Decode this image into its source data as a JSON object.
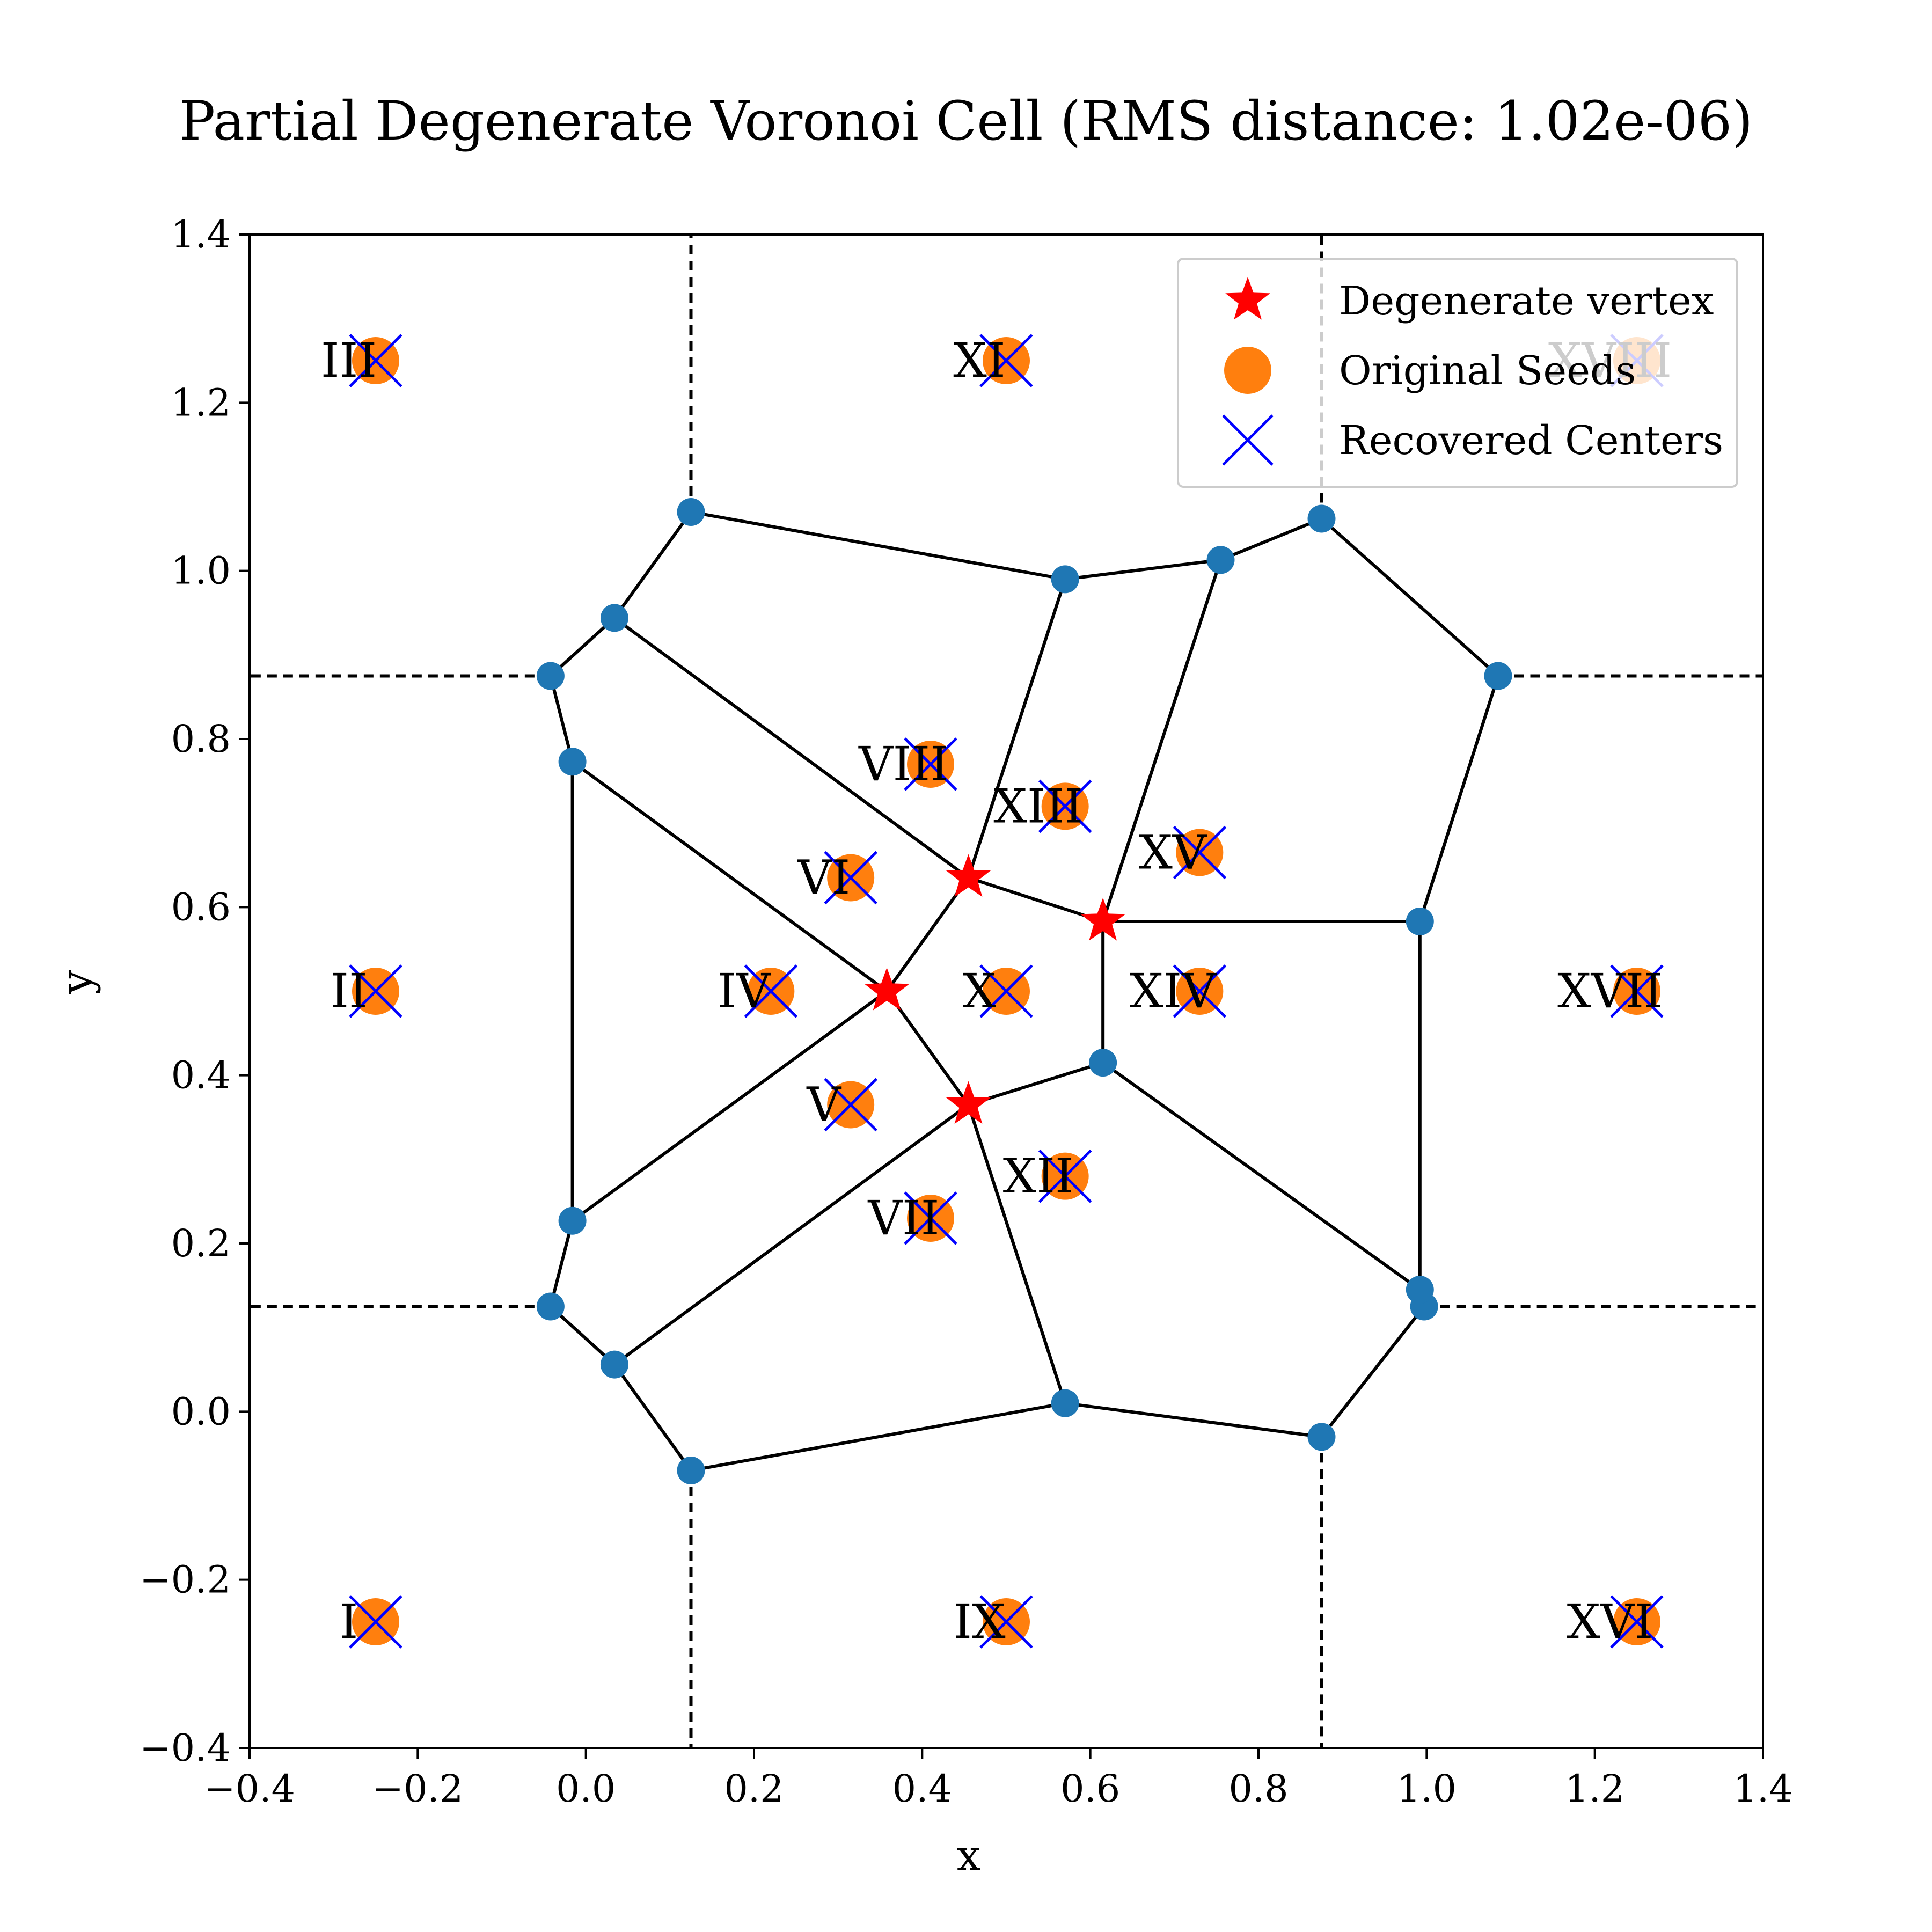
{
  "chart_data": {
    "type": "scatter",
    "title": "Partial Degenerate Voronoi Cell  (RMS distance: 1.02e-06)",
    "xlabel": "x",
    "ylabel": "y",
    "xlim": [
      -0.4,
      1.4
    ],
    "ylim": [
      -0.4,
      1.4
    ],
    "xticks": [
      -0.4,
      -0.2,
      0.0,
      0.2,
      0.4,
      0.6,
      0.8,
      1.0,
      1.2,
      1.4
    ],
    "yticks": [
      -0.4,
      -0.2,
      0.0,
      0.2,
      0.4,
      0.6,
      0.8,
      1.0,
      1.2,
      1.4
    ],
    "xtick_labels": [
      "−0.4",
      "−0.2",
      "0.0",
      "0.2",
      "0.4",
      "0.6",
      "0.8",
      "1.0",
      "1.2",
      "1.4"
    ],
    "ytick_labels": [
      "−0.4",
      "−0.2",
      "0.0",
      "0.2",
      "0.4",
      "0.6",
      "0.8",
      "1.0",
      "1.2",
      "1.4"
    ],
    "legend": {
      "placement": "upper right",
      "entries": [
        "Degenerate vertex",
        "Original Seeds",
        "Recovered Centers"
      ]
    },
    "colors": {
      "vertex": "#1f77b4",
      "seed": "#ff7f0e",
      "center": "#0000ff",
      "degenerate": "#ff0000",
      "edge": "#000000"
    },
    "seeds": [
      {
        "label": "I",
        "x": -0.25,
        "y": -0.25
      },
      {
        "label": "II",
        "x": -0.25,
        "y": 0.5
      },
      {
        "label": "III",
        "x": -0.25,
        "y": 1.25
      },
      {
        "label": "IV",
        "x": 0.22,
        "y": 0.5
      },
      {
        "label": "V",
        "x": 0.315,
        "y": 0.365
      },
      {
        "label": "VI",
        "x": 0.315,
        "y": 0.635
      },
      {
        "label": "VII",
        "x": 0.41,
        "y": 0.23
      },
      {
        "label": "VIII",
        "x": 0.41,
        "y": 0.77
      },
      {
        "label": "IX",
        "x": 0.5,
        "y": -0.25
      },
      {
        "label": "X",
        "x": 0.5,
        "y": 0.5
      },
      {
        "label": "XI",
        "x": 0.5,
        "y": 1.25
      },
      {
        "label": "XII",
        "x": 0.57,
        "y": 0.28
      },
      {
        "label": "XIII",
        "x": 0.57,
        "y": 0.72
      },
      {
        "label": "XIV",
        "x": 0.73,
        "y": 0.5
      },
      {
        "label": "XV",
        "x": 0.73,
        "y": 0.665
      },
      {
        "label": "XVI",
        "x": 1.25,
        "y": -0.25
      },
      {
        "label": "XVII",
        "x": 1.25,
        "y": 0.5
      },
      {
        "label": "XVIII",
        "x": 1.25,
        "y": 1.25
      }
    ],
    "degenerate_vertices": [
      {
        "x": 0.358,
        "y": 0.5
      },
      {
        "x": 0.455,
        "y": 0.635
      },
      {
        "x": 0.455,
        "y": 0.365
      },
      {
        "x": 0.615,
        "y": 0.583
      }
    ],
    "vertices": [
      {
        "x": 0.125,
        "y": 1.07
      },
      {
        "x": 0.034,
        "y": 0.944
      },
      {
        "x": -0.042,
        "y": 0.875
      },
      {
        "x": -0.016,
        "y": 0.773
      },
      {
        "x": -0.016,
        "y": 0.227
      },
      {
        "x": -0.042,
        "y": 0.125
      },
      {
        "x": 0.034,
        "y": 0.056
      },
      {
        "x": 0.125,
        "y": -0.07
      },
      {
        "x": 0.57,
        "y": 0.01
      },
      {
        "x": 0.875,
        "y": -0.03
      },
      {
        "x": 0.997,
        "y": 0.125
      },
      {
        "x": 0.992,
        "y": 0.145
      },
      {
        "x": 0.992,
        "y": 0.583
      },
      {
        "x": 1.085,
        "y": 0.875
      },
      {
        "x": 0.875,
        "y": 1.062
      },
      {
        "x": 0.755,
        "y": 1.013
      },
      {
        "x": 0.57,
        "y": 0.99
      },
      {
        "x": 0.615,
        "y": 0.415
      }
    ],
    "edges": [
      [
        [
          0.125,
          1.07
        ],
        [
          0.034,
          0.944
        ]
      ],
      [
        [
          0.034,
          0.944
        ],
        [
          -0.042,
          0.875
        ]
      ],
      [
        [
          -0.042,
          0.875
        ],
        [
          -0.016,
          0.773
        ]
      ],
      [
        [
          -0.016,
          0.773
        ],
        [
          -0.016,
          0.227
        ]
      ],
      [
        [
          -0.016,
          0.227
        ],
        [
          -0.042,
          0.125
        ]
      ],
      [
        [
          -0.042,
          0.125
        ],
        [
          0.034,
          0.056
        ]
      ],
      [
        [
          0.034,
          0.056
        ],
        [
          0.125,
          -0.07
        ]
      ],
      [
        [
          0.125,
          -0.07
        ],
        [
          0.57,
          0.01
        ]
      ],
      [
        [
          0.57,
          0.01
        ],
        [
          0.875,
          -0.03
        ]
      ],
      [
        [
          0.875,
          -0.03
        ],
        [
          0.997,
          0.125
        ]
      ],
      [
        [
          0.997,
          0.125
        ],
        [
          0.992,
          0.145
        ]
      ],
      [
        [
          0.992,
          0.145
        ],
        [
          0.992,
          0.583
        ]
      ],
      [
        [
          0.992,
          0.583
        ],
        [
          1.085,
          0.875
        ]
      ],
      [
        [
          1.085,
          0.875
        ],
        [
          0.875,
          1.062
        ]
      ],
      [
        [
          0.875,
          1.062
        ],
        [
          0.755,
          1.013
        ]
      ],
      [
        [
          0.755,
          1.013
        ],
        [
          0.57,
          0.99
        ]
      ],
      [
        [
          0.57,
          0.99
        ],
        [
          0.125,
          1.07
        ]
      ],
      [
        [
          0.034,
          0.944
        ],
        [
          0.455,
          0.635
        ]
      ],
      [
        [
          -0.016,
          0.773
        ],
        [
          0.358,
          0.5
        ]
      ],
      [
        [
          -0.016,
          0.227
        ],
        [
          0.358,
          0.5
        ]
      ],
      [
        [
          0.034,
          0.056
        ],
        [
          0.455,
          0.365
        ]
      ],
      [
        [
          0.358,
          0.5
        ],
        [
          0.455,
          0.635
        ]
      ],
      [
        [
          0.358,
          0.5
        ],
        [
          0.455,
          0.365
        ]
      ],
      [
        [
          0.455,
          0.635
        ],
        [
          0.615,
          0.583
        ]
      ],
      [
        [
          0.455,
          0.635
        ],
        [
          0.57,
          0.99
        ]
      ],
      [
        [
          0.455,
          0.365
        ],
        [
          0.57,
          0.01
        ]
      ],
      [
        [
          0.455,
          0.365
        ],
        [
          0.615,
          0.415
        ]
      ],
      [
        [
          0.615,
          0.583
        ],
        [
          0.755,
          1.013
        ]
      ],
      [
        [
          0.615,
          0.583
        ],
        [
          0.615,
          0.415
        ]
      ],
      [
        [
          0.615,
          0.583
        ],
        [
          0.992,
          0.583
        ]
      ],
      [
        [
          0.615,
          0.415
        ],
        [
          0.992,
          0.145
        ]
      ]
    ],
    "dashed_lines": [
      [
        [
          0.125,
          1.07
        ],
        [
          0.125,
          1.4
        ]
      ],
      [
        [
          0.875,
          1.062
        ],
        [
          0.875,
          1.4
        ]
      ],
      [
        [
          0.125,
          -0.07
        ],
        [
          0.125,
          -0.4
        ]
      ],
      [
        [
          0.875,
          -0.03
        ],
        [
          0.875,
          -0.4
        ]
      ],
      [
        [
          -0.042,
          0.875
        ],
        [
          -0.4,
          0.875
        ]
      ],
      [
        [
          -0.042,
          0.125
        ],
        [
          -0.4,
          0.125
        ]
      ],
      [
        [
          1.085,
          0.875
        ],
        [
          1.4,
          0.875
        ]
      ],
      [
        [
          0.997,
          0.125
        ],
        [
          1.4,
          0.125
        ]
      ]
    ]
  }
}
